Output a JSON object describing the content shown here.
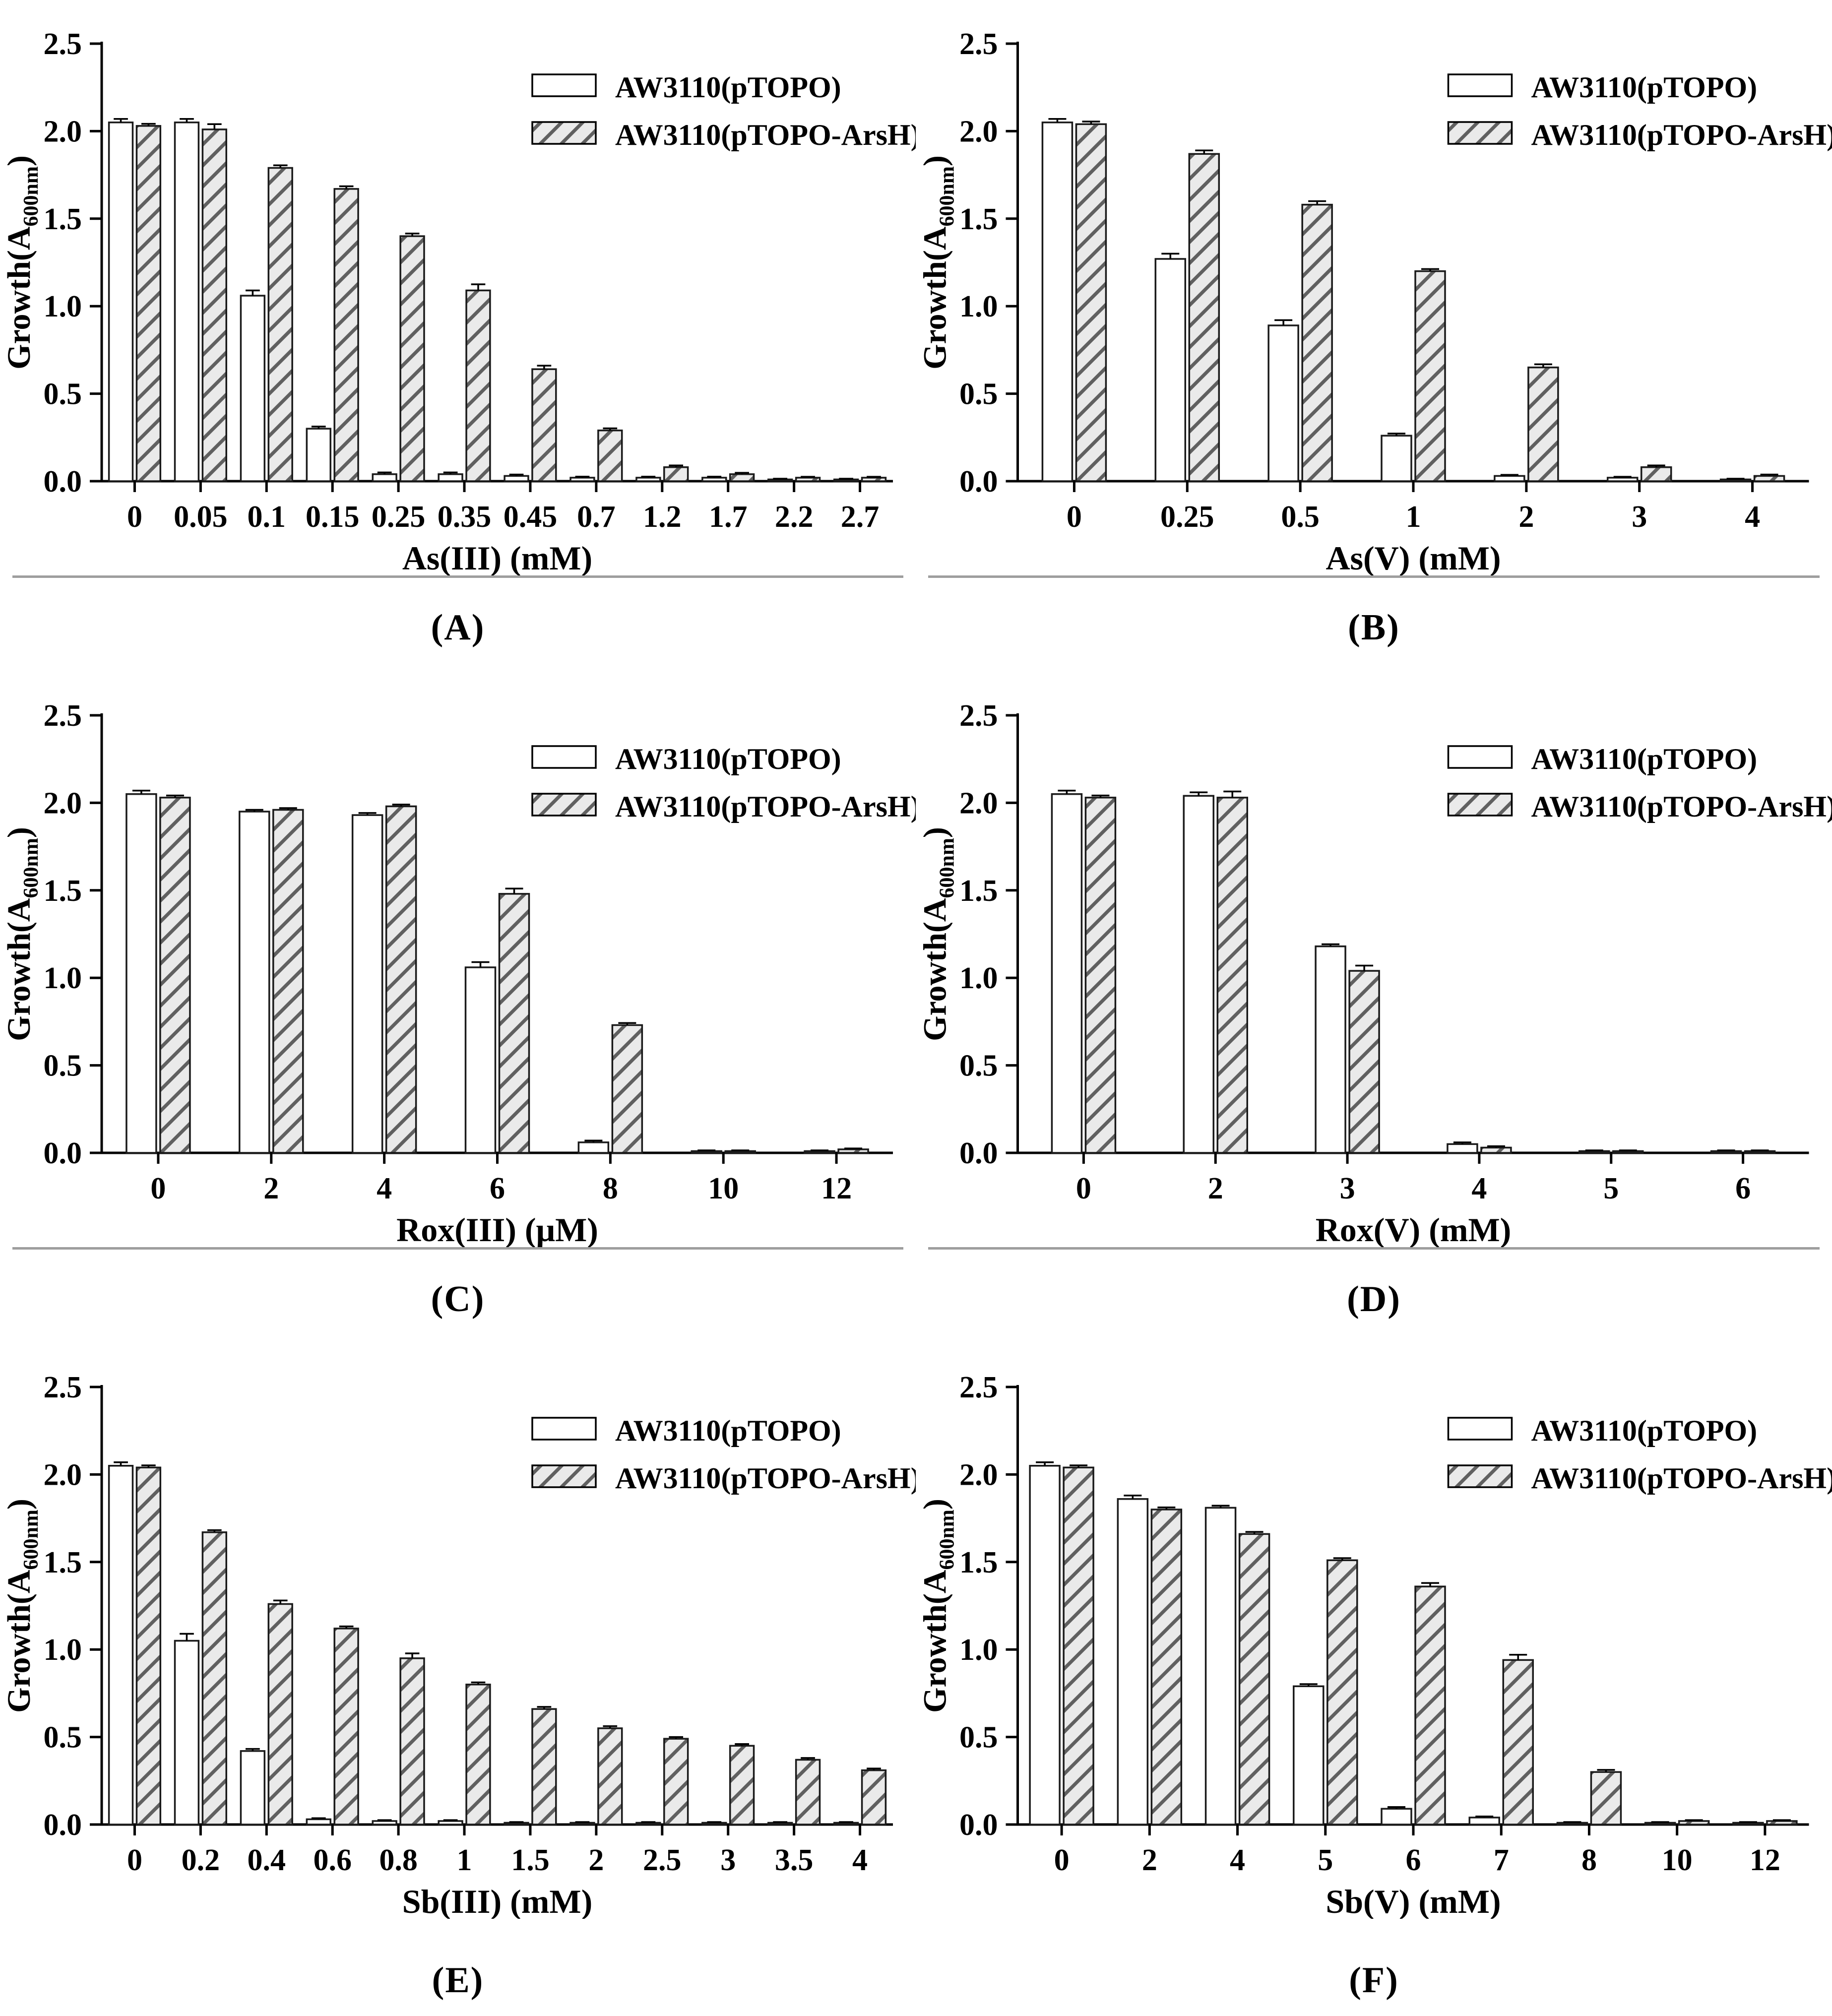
{
  "figure": {
    "legend_labels": [
      "AW3110(pTOPO)",
      "AW3110(pTOPO-ArsH)"
    ],
    "ylabel": {
      "main": "Growth(A",
      "sub": "600nm",
      "close": ")"
    },
    "yticks": [
      "0.0",
      "0.5",
      "1.0",
      "1.5",
      "2.0",
      "2.5"
    ],
    "ylim": [
      0,
      2.5
    ],
    "colors": {
      "axis": "#000000",
      "bar_outline": "#1a1a1a",
      "hatch_fill": "#eaeaea",
      "hatch_line": "#606060",
      "separator": "#9e9e9e"
    }
  },
  "chart_data": [
    {
      "type": "bar",
      "panel": "(A)",
      "xlabel": "As(III) (mM)",
      "ylabel": "Growth(A600nm)",
      "ylim": [
        0,
        2.5
      ],
      "legend_position": "upper-right",
      "categories": [
        "0",
        "0.05",
        "0.1",
        "0.15",
        "0.25",
        "0.35",
        "0.45",
        "0.7",
        "1.2",
        "1.7",
        "2.2",
        "2.7"
      ],
      "series": [
        {
          "name": "AW3110(pTOPO)",
          "style": "white",
          "values": [
            2.05,
            2.05,
            1.06,
            0.3,
            0.04,
            0.04,
            0.03,
            0.02,
            0.02,
            0.02,
            0.01,
            0.01
          ],
          "errors": [
            0.02,
            0.02,
            0.03,
            0.012,
            0.01,
            0.01,
            0.008,
            0.006,
            0.006,
            0.006,
            0.004,
            0.004
          ]
        },
        {
          "name": "AW3110(pTOPO-ArsH)",
          "style": "hatched",
          "values": [
            2.03,
            2.01,
            1.79,
            1.67,
            1.4,
            1.09,
            0.64,
            0.29,
            0.08,
            0.04,
            0.02,
            0.02
          ],
          "errors": [
            0.012,
            0.03,
            0.015,
            0.015,
            0.015,
            0.035,
            0.02,
            0.012,
            0.01,
            0.008,
            0.005,
            0.005
          ]
        }
      ]
    },
    {
      "type": "bar",
      "panel": "(B)",
      "xlabel": "As(V) (mM)",
      "ylabel": "Growth(A600nm)",
      "ylim": [
        0,
        2.5
      ],
      "legend_position": "upper-right",
      "categories": [
        "0",
        "0.25",
        "0.5",
        "1",
        "2",
        "3",
        "4"
      ],
      "series": [
        {
          "name": "AW3110(pTOPO)",
          "style": "white",
          "values": [
            2.05,
            1.27,
            0.89,
            0.26,
            0.03,
            0.02,
            0.01
          ],
          "errors": [
            0.02,
            0.03,
            0.03,
            0.012,
            0.006,
            0.005,
            0.004
          ]
        },
        {
          "name": "AW3110(pTOPO-ArsH)",
          "style": "hatched",
          "values": [
            2.04,
            1.87,
            1.58,
            1.2,
            0.65,
            0.08,
            0.03
          ],
          "errors": [
            0.015,
            0.02,
            0.02,
            0.012,
            0.018,
            0.01,
            0.008
          ]
        }
      ]
    },
    {
      "type": "bar",
      "panel": "(C)",
      "xlabel": "Rox(III) (μM)",
      "ylabel": "Growth(A600nm)",
      "ylim": [
        0,
        2.5
      ],
      "legend_position": "upper-right",
      "categories": [
        "0",
        "2",
        "4",
        "6",
        "8",
        "10",
        "12"
      ],
      "series": [
        {
          "name": "AW3110(pTOPO)",
          "style": "white",
          "values": [
            2.05,
            1.95,
            1.93,
            1.06,
            0.06,
            0.01,
            0.01
          ],
          "errors": [
            0.02,
            0.01,
            0.012,
            0.03,
            0.01,
            0.004,
            0.004
          ]
        },
        {
          "name": "AW3110(pTOPO-ArsH)",
          "style": "hatched",
          "values": [
            2.03,
            1.96,
            1.98,
            1.48,
            0.73,
            0.01,
            0.02
          ],
          "errors": [
            0.012,
            0.01,
            0.01,
            0.03,
            0.012,
            0.004,
            0.005
          ]
        }
      ]
    },
    {
      "type": "bar",
      "panel": "(D)",
      "xlabel": "Rox(V) (mM)",
      "ylabel": "Growth(A600nm)",
      "ylim": [
        0,
        2.5
      ],
      "legend_position": "upper-right",
      "categories": [
        "0",
        "2",
        "3",
        "4",
        "5",
        "6"
      ],
      "series": [
        {
          "name": "AW3110(pTOPO)",
          "style": "white",
          "values": [
            2.05,
            2.04,
            1.18,
            0.05,
            0.01,
            0.01
          ],
          "errors": [
            0.02,
            0.02,
            0.012,
            0.01,
            0.004,
            0.004
          ]
        },
        {
          "name": "AW3110(pTOPO-ArsH)",
          "style": "hatched",
          "values": [
            2.03,
            2.03,
            1.04,
            0.03,
            0.01,
            0.01
          ],
          "errors": [
            0.012,
            0.035,
            0.03,
            0.008,
            0.004,
            0.004
          ]
        }
      ]
    },
    {
      "type": "bar",
      "panel": "(E)",
      "xlabel": "Sb(III) (mM)",
      "ylabel": "Growth(A600nm)",
      "ylim": [
        0,
        2.5
      ],
      "legend_position": "upper-right",
      "categories": [
        "0",
        "0.2",
        "0.4",
        "0.6",
        "0.8",
        "1",
        "1.5",
        "2",
        "2.5",
        "3",
        "3.5",
        "4"
      ],
      "series": [
        {
          "name": "AW3110(pTOPO)",
          "style": "white",
          "values": [
            2.05,
            1.05,
            0.42,
            0.03,
            0.02,
            0.02,
            0.01,
            0.01,
            0.01,
            0.01,
            0.01,
            0.01
          ],
          "errors": [
            0.02,
            0.04,
            0.012,
            0.006,
            0.005,
            0.005,
            0.004,
            0.004,
            0.004,
            0.004,
            0.004,
            0.004
          ]
        },
        {
          "name": "AW3110(pTOPO-ArsH)",
          "style": "hatched",
          "values": [
            2.04,
            1.67,
            1.26,
            1.12,
            0.95,
            0.8,
            0.66,
            0.55,
            0.49,
            0.45,
            0.37,
            0.31
          ],
          "errors": [
            0.012,
            0.012,
            0.02,
            0.012,
            0.028,
            0.012,
            0.012,
            0.012,
            0.01,
            0.01,
            0.01,
            0.01
          ]
        }
      ]
    },
    {
      "type": "bar",
      "panel": "(F)",
      "xlabel": "Sb(V) (mM)",
      "ylabel": "Growth(A600nm)",
      "ylim": [
        0,
        2.5
      ],
      "legend_position": "upper-right",
      "categories": [
        "0",
        "2",
        "4",
        "5",
        "6",
        "7",
        "8",
        "10",
        "12"
      ],
      "series": [
        {
          "name": "AW3110(pTOPO)",
          "style": "white",
          "values": [
            2.05,
            1.86,
            1.81,
            0.79,
            0.09,
            0.04,
            0.01,
            0.01,
            0.01
          ],
          "errors": [
            0.02,
            0.02,
            0.012,
            0.012,
            0.01,
            0.006,
            0.004,
            0.004,
            0.004
          ]
        },
        {
          "name": "AW3110(pTOPO-ArsH)",
          "style": "hatched",
          "values": [
            2.04,
            1.8,
            1.66,
            1.51,
            1.36,
            0.94,
            0.3,
            0.02,
            0.02
          ],
          "errors": [
            0.012,
            0.012,
            0.012,
            0.012,
            0.02,
            0.03,
            0.012,
            0.005,
            0.005
          ]
        }
      ]
    }
  ]
}
